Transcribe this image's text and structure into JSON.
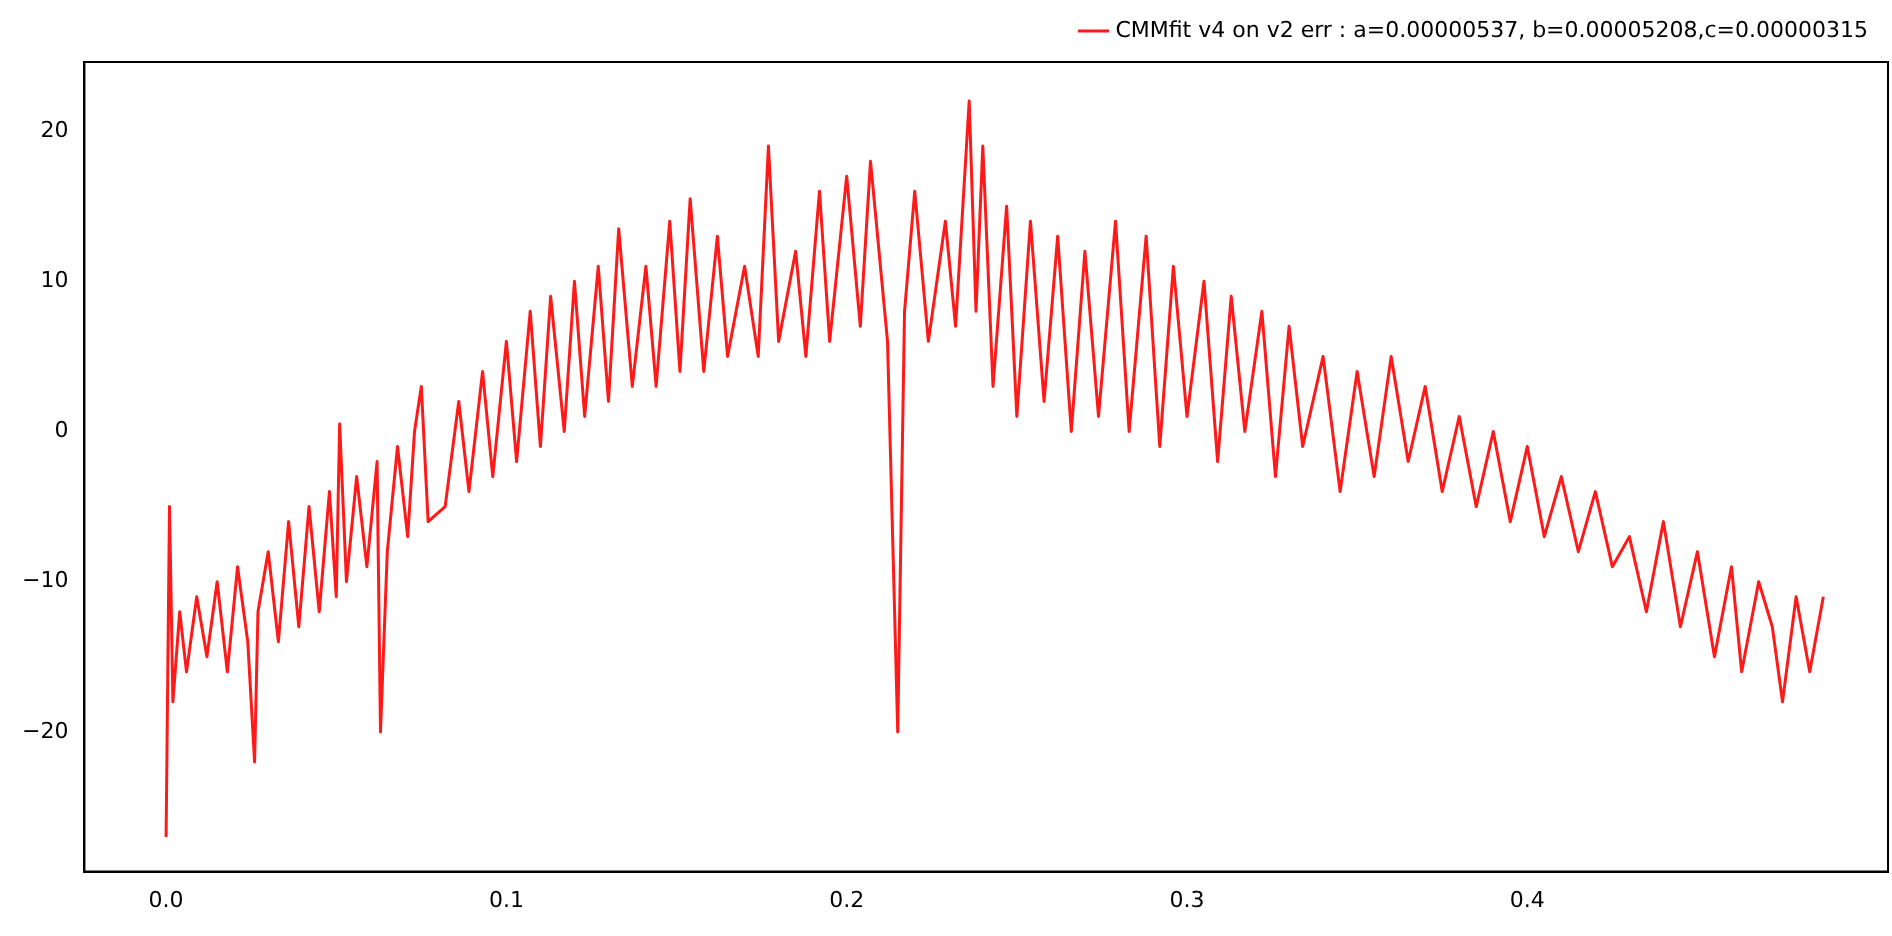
{
  "chart_data": {
    "type": "line",
    "legend": "top right",
    "marker": "none",
    "line_style": "solid",
    "grid": false,
    "xlim": [
      -0.024,
      0.506
    ],
    "ylim": [
      -29.3,
      24.6
    ],
    "xticks": [
      {
        "value": 0,
        "label": "0.0"
      },
      {
        "value": 0.1,
        "label": "0.1"
      },
      {
        "value": 0.2,
        "label": "0.2"
      },
      {
        "value": 0.3,
        "label": "0.3"
      },
      {
        "value": 0.4,
        "label": "0.4"
      }
    ],
    "yticks": [
      {
        "value": -20,
        "label": "−20"
      },
      {
        "value": -10,
        "label": "−10"
      },
      0,
      10,
      20
    ],
    "series": [
      {
        "name": "CMMfit v4 on v2 err : a=0.00000537, b=0.00005208,c=0.00000315",
        "color": "#ff1a1a",
        "x": [
          0,
          0.001,
          0.002,
          0.004,
          0.006,
          0.009,
          0.012,
          0.015,
          0.018,
          0.021,
          0.024,
          0.026,
          0.027,
          0.03,
          0.033,
          0.036,
          0.039,
          0.042,
          0.045,
          0.048,
          0.05,
          0.051,
          0.053,
          0.056,
          0.059,
          0.062,
          0.063,
          0.065,
          0.068,
          0.071,
          0.073,
          0.075,
          0.077,
          0.082,
          0.086,
          0.089,
          0.093,
          0.096,
          0.1,
          0.103,
          0.107,
          0.11,
          0.113,
          0.117,
          0.12,
          0.123,
          0.127,
          0.13,
          0.133,
          0.137,
          0.141,
          0.144,
          0.148,
          0.151,
          0.154,
          0.158,
          0.162,
          0.165,
          0.17,
          0.174,
          0.177,
          0.18,
          0.185,
          0.188,
          0.192,
          0.195,
          0.2,
          0.204,
          0.207,
          0.212,
          0.215,
          0.217,
          0.22,
          0.224,
          0.229,
          0.232,
          0.236,
          0.238,
          0.24,
          0.243,
          0.247,
          0.25,
          0.254,
          0.258,
          0.262,
          0.266,
          0.27,
          0.274,
          0.279,
          0.283,
          0.288,
          0.292,
          0.296,
          0.3,
          0.305,
          0.309,
          0.313,
          0.317,
          0.322,
          0.326,
          0.33,
          0.334,
          0.34,
          0.345,
          0.35,
          0.355,
          0.36,
          0.365,
          0.37,
          0.375,
          0.38,
          0.385,
          0.39,
          0.395,
          0.4,
          0.405,
          0.41,
          0.415,
          0.42,
          0.425,
          0.43,
          0.435,
          0.44,
          0.445,
          0.45,
          0.455,
          0.46,
          0.463,
          0.468,
          0.472,
          0.475,
          0.479,
          0.483,
          0.487
        ],
        "values": [
          -27,
          -5,
          -18,
          -12,
          -16,
          -11,
          -15,
          -10,
          -16,
          -9,
          -14,
          -22,
          -12,
          -8,
          -14,
          -6,
          -13,
          -5,
          -12,
          -4,
          -11,
          0.5,
          -10,
          -3,
          -9,
          -2,
          -20,
          -8,
          -1,
          -7,
          0,
          3,
          -6,
          -5,
          2,
          -4,
          4,
          -3,
          6,
          -2,
          8,
          -1,
          9,
          0,
          10,
          1,
          11,
          2,
          13.5,
          3,
          11,
          3,
          14,
          4,
          15.5,
          4,
          13,
          5,
          11,
          5,
          19,
          6,
          12,
          5,
          16,
          6,
          17,
          7,
          18,
          6,
          -20,
          8,
          16,
          6,
          14,
          7,
          22,
          8,
          19,
          3,
          15,
          1,
          14,
          2,
          13,
          0,
          12,
          1,
          14,
          0,
          13,
          -1,
          11,
          1,
          10,
          -2,
          9,
          0,
          8,
          -3,
          7,
          -1,
          5,
          -4,
          4,
          -3,
          5,
          -2,
          3,
          -4,
          1,
          -5,
          0,
          -6,
          -1,
          -7,
          -3,
          -8,
          -4,
          -9,
          -7,
          -12,
          -6,
          -13,
          -8,
          -15,
          -9,
          -16,
          -10,
          -13,
          -18,
          -11,
          -16,
          -11
        ]
      }
    ]
  }
}
